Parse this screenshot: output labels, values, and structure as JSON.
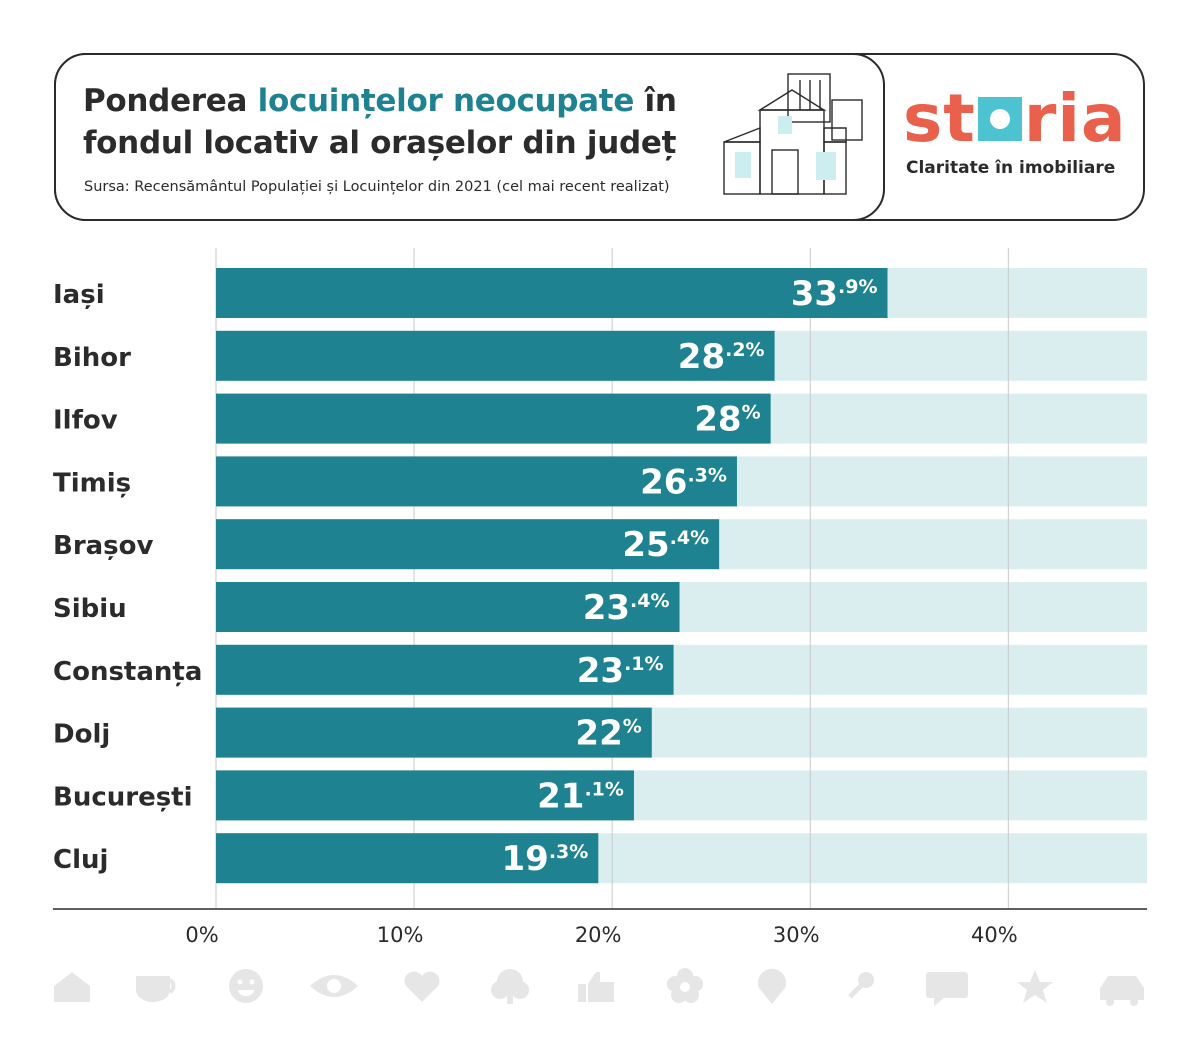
{
  "header": {
    "title_part1": "Ponderea ",
    "title_accent": "locuințelor neocupate",
    "title_part2": " în fondul locativ al orașelor din județ",
    "source": "Sursa: Recensământul Populației și Locuințelor din 2021 (cel mai recent realizat)"
  },
  "brand": {
    "logo_start": "st",
    "logo_end": "ria",
    "tagline": "Claritate în imobiliare",
    "logo_color": "#e9604d",
    "logo_accent": "#4cc3cf"
  },
  "colors": {
    "bar": "#1e8290",
    "track": "#daeeef",
    "text": "#2b2b2b"
  },
  "chart_data": {
    "type": "bar",
    "orientation": "horizontal",
    "categories": [
      "Iași",
      "Bihor",
      "Ilfov",
      "Timiș",
      "Brașov",
      "Sibiu",
      "Constanța",
      "Dolj",
      "București",
      "Cluj"
    ],
    "values": [
      33.9,
      28.2,
      28,
      26.3,
      25.4,
      23.4,
      23.1,
      22,
      21.1,
      19.3
    ],
    "value_labels": [
      {
        "int": "33",
        "dec": ".9%"
      },
      {
        "int": "28",
        "dec": ".2%"
      },
      {
        "int": "28",
        "dec": "%"
      },
      {
        "int": "26",
        "dec": ".3%"
      },
      {
        "int": "25",
        "dec": ".4%"
      },
      {
        "int": "23",
        "dec": ".4%"
      },
      {
        "int": "23",
        "dec": ".1%"
      },
      {
        "int": "22",
        "dec": "%"
      },
      {
        "int": "21",
        "dec": ".1%"
      },
      {
        "int": "19",
        "dec": ".3%"
      }
    ],
    "xticks": [
      "0%",
      "10%",
      "20%",
      "30%",
      "40%"
    ],
    "xtick_values": [
      0,
      10,
      20,
      30,
      40
    ],
    "xlim": [
      0,
      47
    ],
    "grid": true
  },
  "footer_icons": [
    "home-icon",
    "cup-icon",
    "smiley-icon",
    "eye-icon",
    "heart-icon",
    "tree-icon",
    "thumbs-up-icon",
    "flower-icon",
    "map-pin-icon",
    "key-icon",
    "chat-icon",
    "star-icon",
    "car-icon"
  ]
}
